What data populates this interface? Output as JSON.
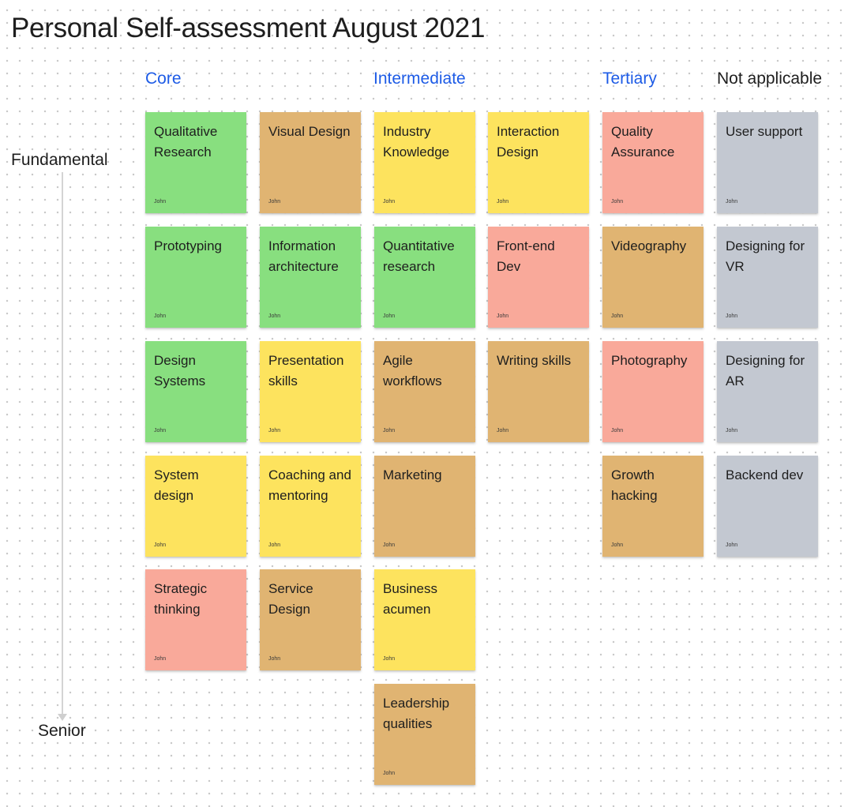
{
  "title": "Personal Self-assessment August 2021",
  "colors": {
    "green": "#88df7f",
    "tan": "#e0b472",
    "yellow": "#fde35e",
    "salmon": "#f9a99a",
    "gray": "#c3c8d1",
    "heading_blue": "#1d5be6"
  },
  "columns": {
    "core": "Core",
    "intermediate": "Intermediate",
    "tertiary": "Tertiary",
    "not_applicable": "Not applicable"
  },
  "axis": {
    "top_label": "Fundamental",
    "bottom_label": "Senior"
  },
  "stickies": [
    {
      "text": "Qualitative Research",
      "author": "John",
      "color": "green"
    },
    {
      "text": "Visual Design",
      "author": "John",
      "color": "tan"
    },
    {
      "text": "Industry Knowledge",
      "author": "John",
      "color": "yellow"
    },
    {
      "text": "Interaction Design",
      "author": "John",
      "color": "yellow"
    },
    {
      "text": "Quality Assurance",
      "author": "John",
      "color": "salmon"
    },
    {
      "text": "User support",
      "author": "John",
      "color": "gray"
    },
    {
      "text": "Prototyping",
      "author": "John",
      "color": "green"
    },
    {
      "text": "Information architecture",
      "author": "John",
      "color": "green"
    },
    {
      "text": "Quantitative research",
      "author": "John",
      "color": "green"
    },
    {
      "text": "Front-end Dev",
      "author": "John",
      "color": "salmon"
    },
    {
      "text": "Videography",
      "author": "John",
      "color": "tan"
    },
    {
      "text": "Designing for VR",
      "author": "John",
      "color": "gray"
    },
    {
      "text": "Design Systems",
      "author": "John",
      "color": "green"
    },
    {
      "text": "Presentation skills",
      "author": "John",
      "color": "yellow"
    },
    {
      "text": "Agile workflows",
      "author": "John",
      "color": "tan"
    },
    {
      "text": "Writing skills",
      "author": "John",
      "color": "tan"
    },
    {
      "text": "Photography",
      "author": "John",
      "color": "salmon"
    },
    {
      "text": "Designing for AR",
      "author": "John",
      "color": "gray"
    },
    {
      "text": "System design",
      "author": "John",
      "color": "yellow"
    },
    {
      "text": "Coaching and mentoring",
      "author": "John",
      "color": "yellow"
    },
    {
      "text": "Marketing",
      "author": "John",
      "color": "tan"
    },
    {
      "text": "Growth hacking",
      "author": "John",
      "color": "tan"
    },
    {
      "text": "Backend dev",
      "author": "John",
      "color": "gray"
    },
    {
      "text": "Strategic thinking",
      "author": "John",
      "color": "salmon"
    },
    {
      "text": "Service Design",
      "author": "John",
      "color": "tan"
    },
    {
      "text": "Business acumen",
      "author": "John",
      "color": "yellow"
    },
    {
      "text": "Leadership qualities",
      "author": "John",
      "color": "tan"
    }
  ]
}
